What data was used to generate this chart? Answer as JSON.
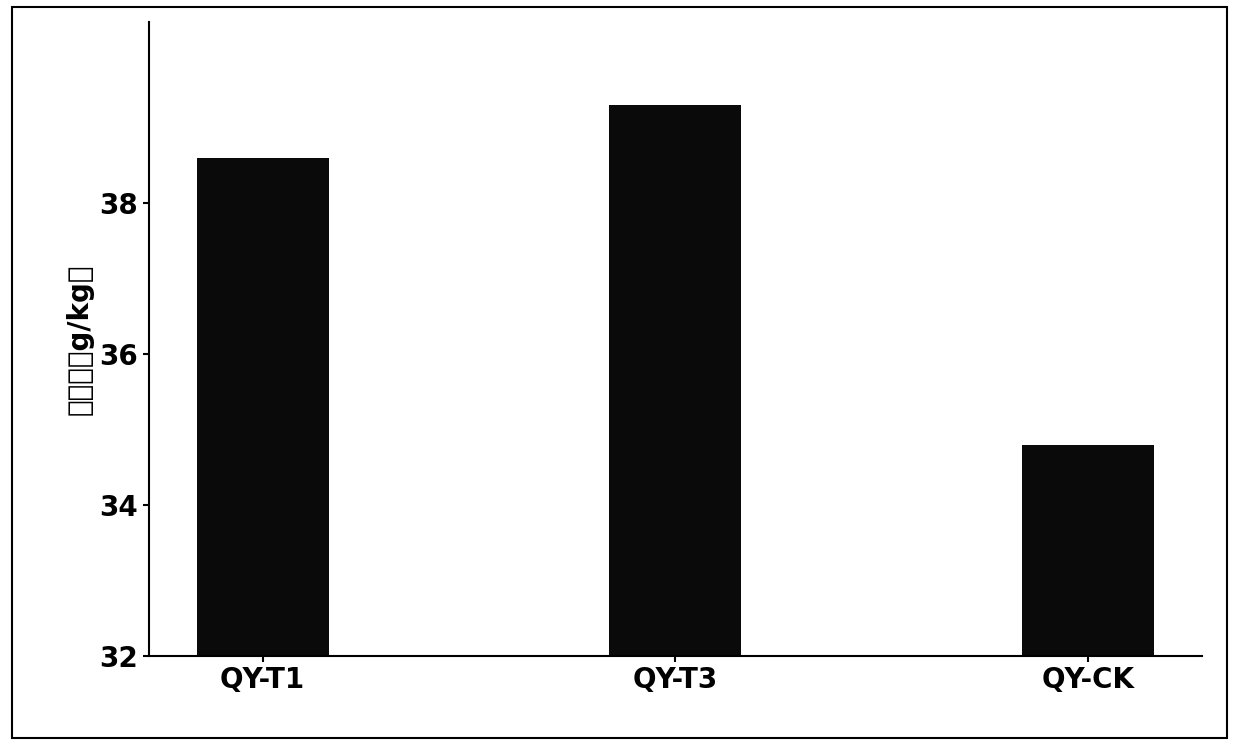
{
  "categories": [
    "QY-T1",
    "QY-T3",
    "QY-CK"
  ],
  "values": [
    38.6,
    39.3,
    34.8
  ],
  "bar_color": "#0a0a0a",
  "ylabel": "有机质（g/kg）",
  "ylim": [
    32,
    40.4
  ],
  "yticks": [
    32,
    34,
    36,
    38
  ],
  "bar_width": 0.32,
  "background_color": "#ffffff",
  "tick_fontsize": 20,
  "ylabel_fontsize": 20,
  "xlabel_fontsize": 20,
  "spine_linewidth": 1.5
}
